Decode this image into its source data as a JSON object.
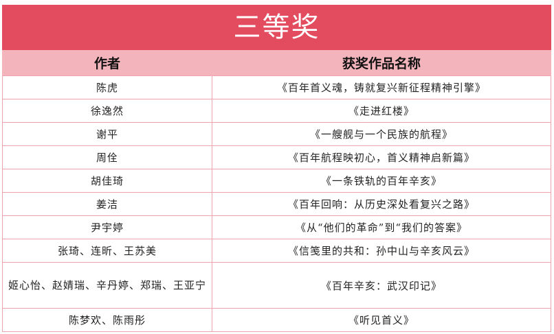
{
  "title": "三等奖",
  "headers": {
    "author": "作者",
    "work": "获奖作品名称"
  },
  "rows": [
    {
      "author": "陈虎",
      "work": "《百年首义魂，铸就复兴新征程精神引擎》"
    },
    {
      "author": "徐逸然",
      "work": "《走进红楼》"
    },
    {
      "author": "谢平",
      "work": "《一艘舰与一个民族的航程》"
    },
    {
      "author": "周佺",
      "work": "《百年航程映初心，首义精神启新篇》"
    },
    {
      "author": "胡佳琦",
      "work": "《一条铁轨的百年辛亥》"
    },
    {
      "author": "姜洁",
      "work": "《百年回响：从历史深处看复兴之路》"
    },
    {
      "author": "尹宇婷",
      "work": "《从“他们的革命”到“我们的答案》"
    },
    {
      "author": "张琦、连昕、王苏美",
      "work": "《信笺里的共和：孙中山与辛亥风云》"
    },
    {
      "author": "姬心怡、赵婧瑞、辛丹婷、郑瑞、王亚宁",
      "work": "《百年辛亥：武汉印记》"
    },
    {
      "author": "陈梦欢、陈雨彤",
      "work": "《听见首义》"
    }
  ],
  "colors": {
    "title_bg": "#e34b5e",
    "header_bg": "#f4b4bc",
    "border": "#f0a2ac"
  }
}
